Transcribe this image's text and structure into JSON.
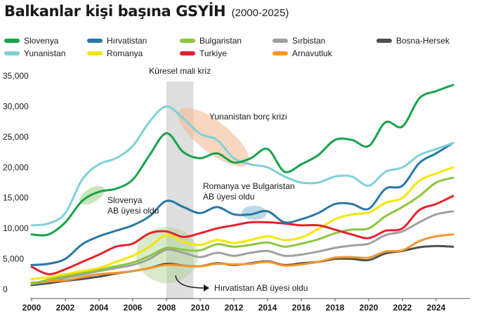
{
  "chart_data": {
    "type": "line",
    "title": "Balkanlar kişi başına GSYİH",
    "subtitle": "(2000-2025)",
    "x": [
      2000,
      2001,
      2002,
      2003,
      2004,
      2005,
      2006,
      2007,
      2008,
      2009,
      2010,
      2011,
      2012,
      2013,
      2014,
      2015,
      2016,
      2017,
      2018,
      2019,
      2020,
      2021,
      2022,
      2023,
      2024,
      2025
    ],
    "xticks": [
      2000,
      2002,
      2004,
      2006,
      2008,
      2010,
      2012,
      2014,
      2016,
      2018,
      2020,
      2022,
      2024
    ],
    "yticks": [
      0,
      5000,
      10000,
      15000,
      20000,
      25000,
      30000,
      35000
    ],
    "ytick_labels": [
      "0",
      "5,000",
      "10,000",
      "15,000",
      "20,000",
      "25,000",
      "30,000",
      "35,000"
    ],
    "xlim": [
      2000,
      2026
    ],
    "ylim": [
      0,
      35000
    ],
    "grid": false,
    "legend_position": "top",
    "series": [
      {
        "name": "Slovenya",
        "color": "#16a34a",
        "values": [
          9000,
          9000,
          11000,
          14500,
          16000,
          16500,
          18000,
          22000,
          25600,
          22500,
          21500,
          22300,
          20800,
          21500,
          23000,
          19300,
          20500,
          22000,
          24500,
          24500,
          23500,
          27400,
          26700,
          31300,
          32500,
          33500
        ]
      },
      {
        "name": "Hırvatistan",
        "color": "#2878a6",
        "values": [
          4000,
          4200,
          5000,
          7400,
          8700,
          9600,
          10500,
          12000,
          14500,
          13500,
          12500,
          13500,
          12300,
          12300,
          12800,
          11000,
          11500,
          12500,
          14000,
          14000,
          13200,
          16500,
          17000,
          20700,
          22300,
          24000
        ]
      },
      {
        "name": "Bulgaristan",
        "color": "#8cc63f",
        "values": [
          900,
          1600,
          2200,
          2700,
          3200,
          3800,
          4400,
          5500,
          6800,
          6500,
          6400,
          7400,
          7000,
          7300,
          7700,
          7000,
          7500,
          8200,
          9200,
          9800,
          10000,
          12000,
          13500,
          15300,
          17500,
          18300
        ]
      },
      {
        "name": "Sırbistan",
        "color": "#a0a0a0",
        "values": [
          900,
          1300,
          1900,
          2400,
          3000,
          3500,
          4000,
          5000,
          6500,
          6000,
          5300,
          6000,
          5500,
          6000,
          6300,
          5500,
          5700,
          6200,
          6800,
          7200,
          7500,
          8900,
          9500,
          11000,
          12300,
          12800
        ]
      },
      {
        "name": "Bosna-Hersek",
        "color": "#505050",
        "values": [
          700,
          1000,
          1400,
          1700,
          2100,
          2600,
          3000,
          3500,
          4200,
          3900,
          3800,
          4300,
          4000,
          4300,
          4600,
          4000,
          4300,
          4500,
          5000,
          5000,
          4800,
          5900,
          6300,
          6900,
          7100,
          7000
        ]
      },
      {
        "name": "Yunanistan",
        "color": "#7fd0d8",
        "values": [
          10500,
          10800,
          12500,
          18000,
          20500,
          21500,
          23500,
          27500,
          30000,
          28000,
          25500,
          24500,
          21500,
          20500,
          20000,
          18500,
          17500,
          17500,
          18500,
          18500,
          17000,
          19300,
          20000,
          22000,
          23000,
          24000
        ]
      },
      {
        "name": "Romanya",
        "color": "#f5e600",
        "values": [
          1700,
          2000,
          2500,
          3000,
          3500,
          4500,
          5500,
          7000,
          8900,
          7800,
          7300,
          8100,
          7600,
          8100,
          8700,
          8100,
          8500,
          9900,
          11500,
          12300,
          12600,
          14200,
          15000,
          17800,
          19000,
          20000
        ]
      },
      {
        "name": "Turkiye",
        "color": "#e8202a",
        "values": [
          3700,
          2500,
          3300,
          4500,
          5700,
          7000,
          7500,
          9200,
          9500,
          8600,
          9200,
          10000,
          10500,
          11000,
          11000,
          10800,
          10500,
          10500,
          9800,
          9000,
          8400,
          9600,
          10000,
          13000,
          14000,
          15300
        ]
      },
      {
        "name": "Arnavutluk",
        "color": "#f4962a",
        "values": [
          1100,
          1300,
          1500,
          2000,
          2500,
          2700,
          3000,
          3500,
          4000,
          3900,
          3800,
          4200,
          4100,
          4200,
          4500,
          3900,
          4100,
          4500,
          5200,
          5300,
          5200,
          6200,
          6400,
          7900,
          8700,
          9000
        ]
      }
    ],
    "annotations": [
      {
        "text": "Küresel mali kriz",
        "x_range": [
          2008,
          2009.6
        ]
      },
      {
        "text": "Yunanistan borç krizi"
      },
      {
        "text": "Slovenya AB üyesi oldu"
      },
      {
        "text": "Romanya ve Bulgaristan AB üyesi oldu"
      },
      {
        "text": "Hırvatistan AB üyesi oldu"
      }
    ]
  }
}
